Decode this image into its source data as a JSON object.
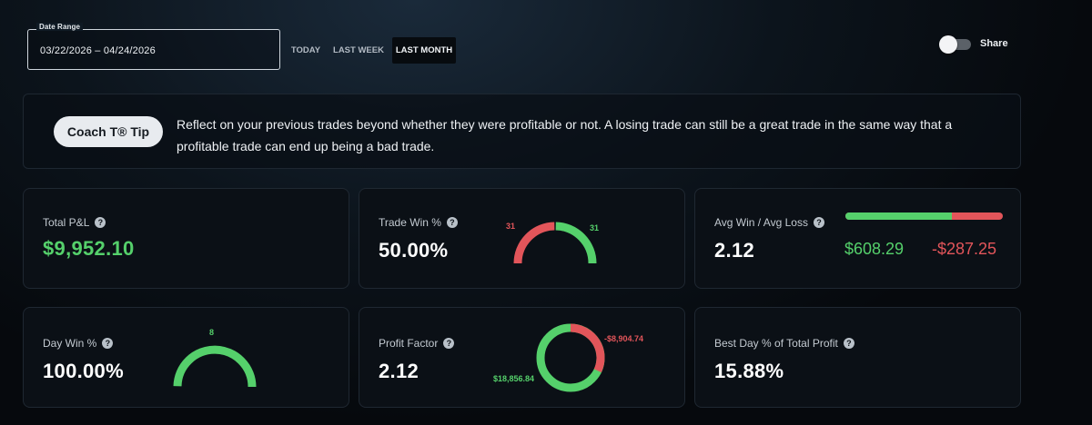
{
  "date_range": {
    "label": "Date Range",
    "value": "03/22/2026 – 04/24/2026",
    "buttons": [
      {
        "label": "TODAY",
        "active": false
      },
      {
        "label": "LAST WEEK",
        "active": false
      },
      {
        "label": "LAST MONTH",
        "active": true
      }
    ]
  },
  "share": {
    "label": "Share",
    "enabled": false
  },
  "coach_tip": {
    "button_label": "Coach T® Tip",
    "text": "Reflect on your previous trades beyond whether they were profitable or not. A losing trade can still be a great trade in the same way that a profitable trade can end up being a bad trade."
  },
  "help_icon": "?",
  "cards": {
    "total_pnl": {
      "label": "Total P&L",
      "value": "$9,952.10"
    },
    "trade_win": {
      "label": "Trade Win %",
      "value": "50.00%",
      "losses": "31",
      "wins": "31",
      "losses_count": 31,
      "wins_count": 31
    },
    "avg_win_loss": {
      "label": "Avg Win / Avg Loss",
      "value": "2.12",
      "avg_win": "$608.29",
      "avg_loss": "-$287.25",
      "win_amount": 608.29,
      "loss_amount": 287.25
    },
    "day_win": {
      "label": "Day Win %",
      "value": "100.00%",
      "wins": "8",
      "wins_count": 8,
      "losses_count": 0
    },
    "profit_factor": {
      "label": "Profit Factor",
      "value": "2.12",
      "gross_profit": "$18,856.84",
      "gross_loss": "-$8,904.74",
      "profit_amount": 18856.84,
      "loss_amount": 8904.74
    },
    "best_day": {
      "label": "Best Day % of Total Profit",
      "value": "15.88%"
    }
  },
  "colors": {
    "green": "#55d06b",
    "red": "#e2555a",
    "card_bg": "#0b1016"
  }
}
